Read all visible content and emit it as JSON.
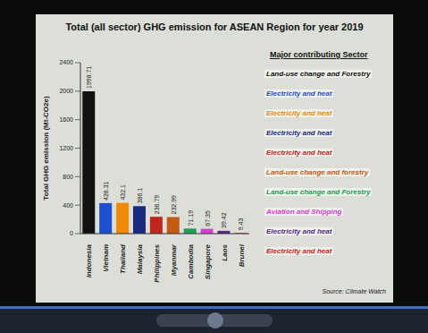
{
  "chart_data": {
    "type": "bar",
    "title": "Total (all sector) GHG emission for ASEAN Region for year 2019",
    "y_label": "Total GHG emission (Mt-CO2e)",
    "categories": [
      "Indonesia",
      "Vietnam",
      "Thailand",
      "Malaysia",
      "Philippines",
      "Myanmar",
      "Cambodia",
      "Singapore",
      "Laos",
      "Brunei"
    ],
    "values": [
      1998.71,
      428.31,
      432.1,
      386.1,
      236.79,
      232.99,
      71.19,
      67.35,
      39.42,
      9.43
    ],
    "colors": [
      "#111111",
      "#1f4fd1",
      "#f08a00",
      "#1a2a80",
      "#c0261c",
      "#c45a10",
      "#1aa050",
      "#d83cd8",
      "#5a2a8a",
      "#d02020"
    ],
    "ylim": [
      0,
      2400
    ],
    "yticks": [
      0,
      400,
      800,
      1200,
      1600,
      2000,
      2400
    ],
    "grid": false,
    "data_labels": true,
    "annotation_title": "Major contributing Sector",
    "annotations": [
      "Land-use change and Forestry",
      "Electricity and heat",
      "Electricity and heat",
      "Electricity and heat",
      "Electricity and heat",
      "Land-use change and forestry",
      "Land-use change and Forestry",
      "Aviation and Shipping",
      "Electricity and heat",
      "Electricity and heat"
    ],
    "source": "Source: Climate Watch"
  }
}
